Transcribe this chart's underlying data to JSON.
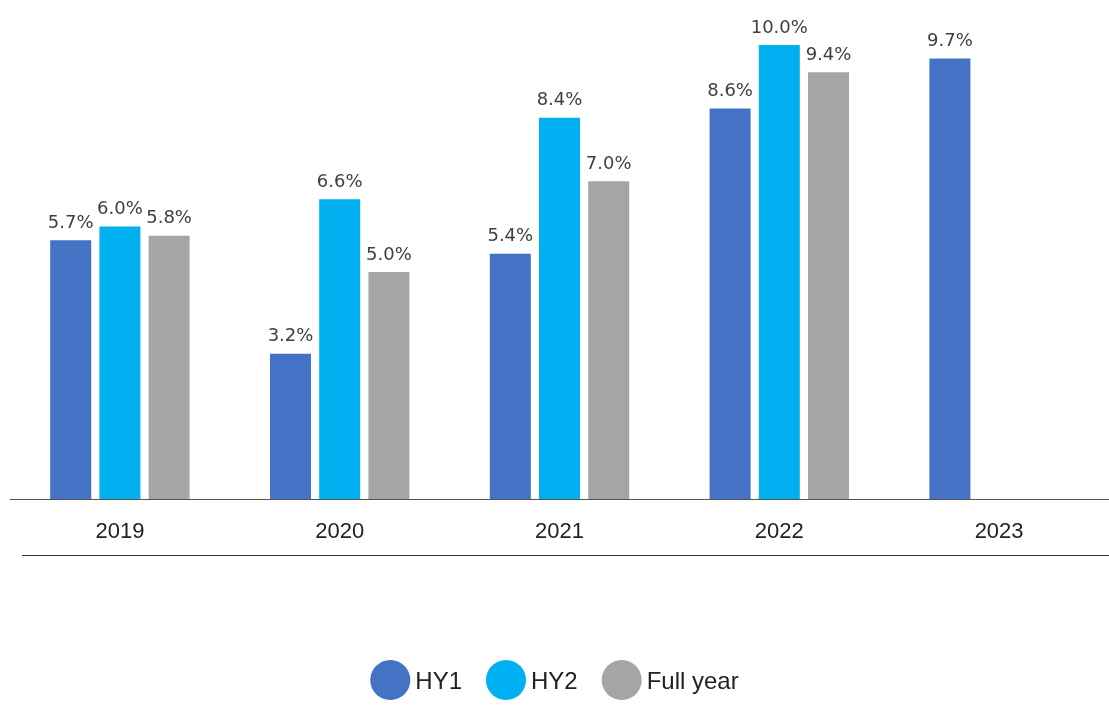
{
  "chart_data": {
    "type": "bar",
    "categories": [
      "2019",
      "2020",
      "2021",
      "2022",
      "2023"
    ],
    "series": [
      {
        "name": "HY1",
        "color": "#4472c4",
        "values": [
          5.7,
          3.2,
          5.4,
          8.6,
          9.7
        ],
        "value_labels": [
          "5.7%",
          "3.2%",
          "5.4%",
          "8.6%",
          "9.7%"
        ]
      },
      {
        "name": "HY2",
        "color": "#00b0f0",
        "values": [
          6.0,
          6.6,
          8.4,
          10.0,
          null
        ],
        "value_labels": [
          "6.0%",
          "6.6%",
          "8.4%",
          "10.0%",
          null
        ]
      },
      {
        "name": "Full year",
        "color": "#a5a5a5",
        "values": [
          5.8,
          5.0,
          7.0,
          9.4,
          null
        ],
        "value_labels": [
          "5.8%",
          "5.0%",
          "7.0%",
          "9.4%",
          null
        ]
      }
    ],
    "legend": "bottom"
  }
}
